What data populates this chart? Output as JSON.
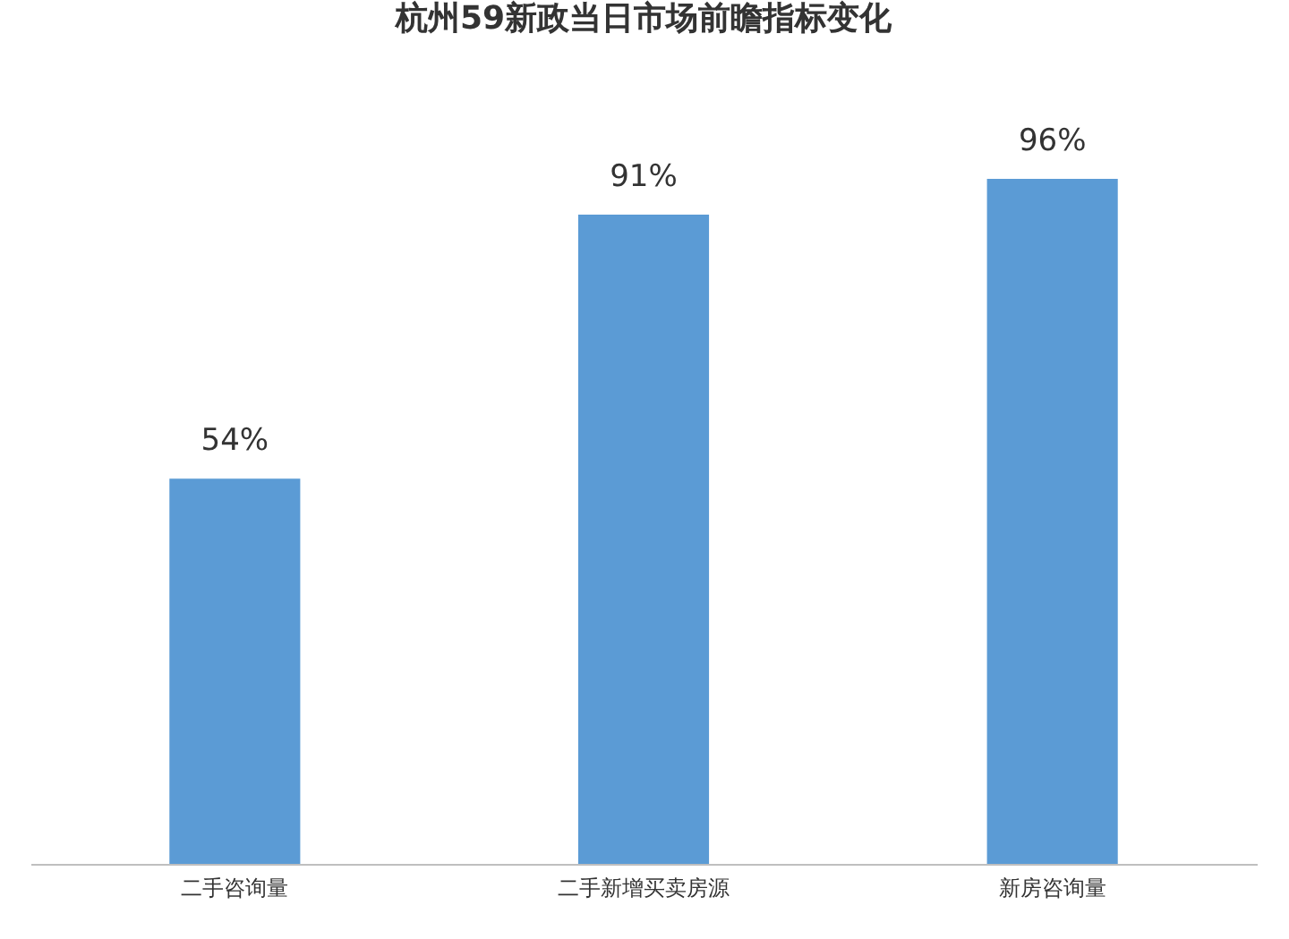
{
  "chart_data": {
    "type": "bar",
    "title": "杭州59新政当日市场前瞻指标变化",
    "categories": [
      "二手咨询量",
      "二手新增买卖房源",
      "新房咨询量"
    ],
    "values": [
      54,
      91,
      96
    ],
    "value_labels": [
      "54%",
      "91%",
      "96%"
    ],
    "color": "#5b9bd5"
  }
}
